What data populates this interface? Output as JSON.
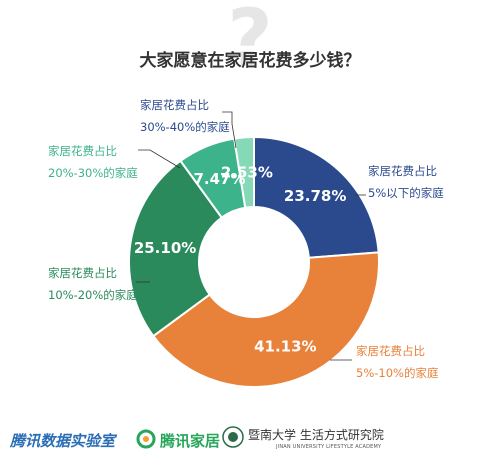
{
  "header": {
    "title": "大家愿意在家居花费多少钱？"
  },
  "chart_data": {
    "type": "pie",
    "title": "大家愿意在家居花费多少钱？",
    "slices": [
      {
        "label": "家居花费占比 5%以下的家庭",
        "line1": "家居花费占比",
        "line2": "5%以下的家庭",
        "value": 23.78,
        "display": "23.78%",
        "color": "#2b4a8e"
      },
      {
        "label": "家居花费占比 5%-10%的家庭",
        "line1": "家居花费占比",
        "line2": "5%-10%的家庭",
        "value": 41.13,
        "display": "41.13%",
        "color": "#e8813a"
      },
      {
        "label": "家居花费占比 10%-20%的家庭",
        "line1": "家居花费占比",
        "line2": "10%-20%的家庭",
        "value": 25.1,
        "display": "25.10%",
        "color": "#2a8a5c"
      },
      {
        "label": "家居花费占比 20%-30%的家庭",
        "line1": "家居花费占比",
        "line2": "20%-30%的家庭",
        "value": 7.47,
        "display": "7.47%",
        "color": "#3cb38b"
      },
      {
        "label": "家居花费占比 30%-40%的家庭",
        "line1": "家居花费占比",
        "line2": "30%-40%的家庭",
        "value": 2.53,
        "display": "2.53%",
        "color": "#86d9b6"
      }
    ]
  },
  "footer": {
    "brand1": "腾讯数据实验室",
    "brand2": "腾讯家居",
    "brand3": "暨南大学 生活方式研究院",
    "brand3_sub": "JINAN UNIVERSITY LIFESTYLE ACADEMY"
  }
}
